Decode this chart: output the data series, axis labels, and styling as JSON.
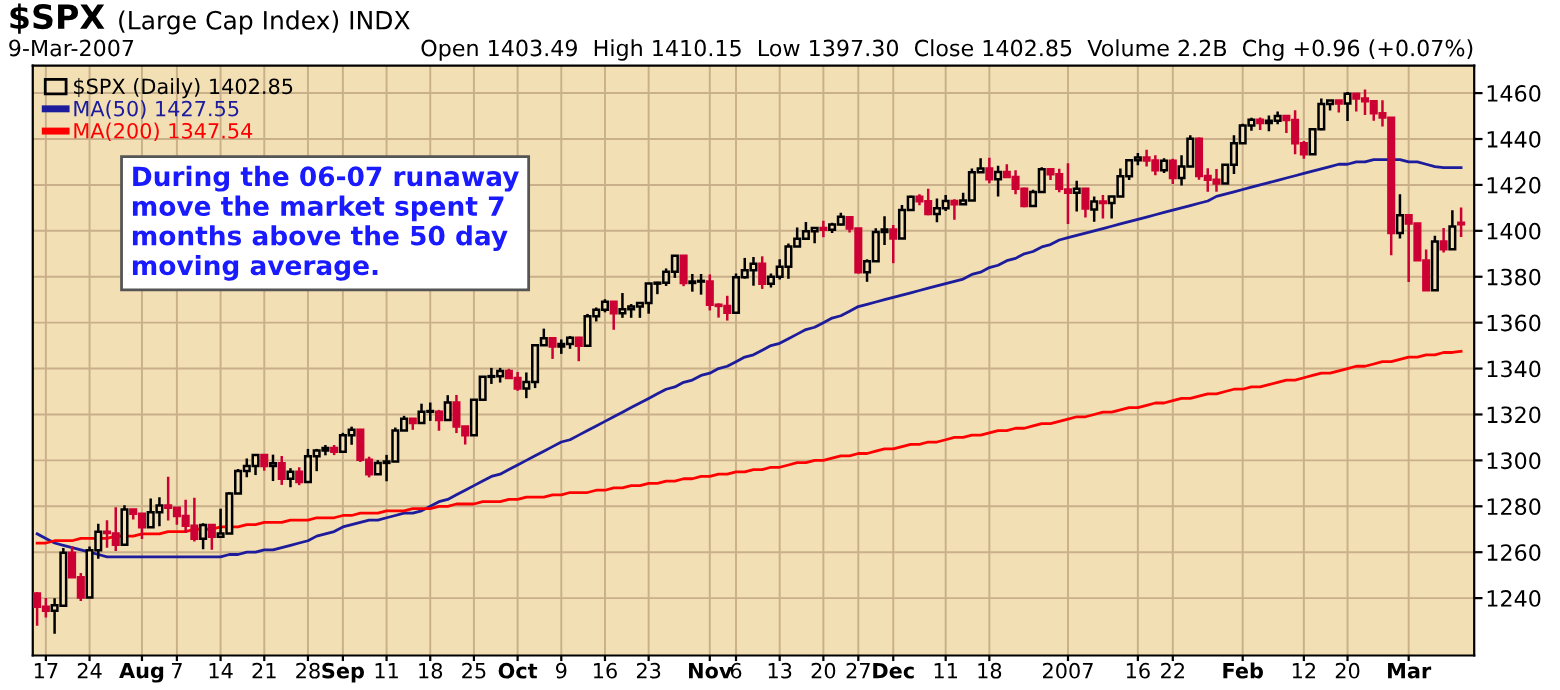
{
  "chart_data": {
    "type": "candlestick",
    "title": "$SPX",
    "subtitle": "(Large Cap Index) INDX",
    "annotations": [
      "9-Mar-2007",
      "Open 1403.49  High 1410.15  Low 1397.30  Close 1402.85  Volume 2.2B  Chg +0.96 (+0.07%)",
      "During the 06-07 runaway\nmove the market spent 7\nmonths above the 50 day\nmoving average."
    ],
    "categories": [
      null,
      "17",
      null,
      null,
      null,
      null,
      "24",
      null,
      null,
      null,
      null,
      null,
      "Aug",
      null,
      null,
      null,
      "7",
      null,
      null,
      null,
      null,
      "14",
      null,
      null,
      null,
      null,
      "21",
      null,
      null,
      null,
      null,
      "28",
      null,
      null,
      null,
      "Sep",
      null,
      null,
      null,
      null,
      "11",
      null,
      null,
      null,
      null,
      "18",
      null,
      null,
      null,
      null,
      "25",
      null,
      null,
      null,
      null,
      "Oct",
      null,
      null,
      null,
      null,
      "9",
      null,
      null,
      null,
      null,
      "16",
      null,
      null,
      null,
      null,
      "23",
      null,
      null,
      null,
      null,
      null,
      null,
      "Nov",
      null,
      null,
      "6",
      null,
      null,
      null,
      null,
      "13",
      null,
      null,
      null,
      null,
      "20",
      null,
      null,
      null,
      "27",
      null,
      null,
      null,
      "Dec",
      null,
      null,
      null,
      null,
      null,
      "11",
      null,
      null,
      null,
      null,
      "18",
      null,
      null,
      null,
      null,
      null,
      null,
      null,
      null,
      "2007",
      null,
      null,
      null,
      null,
      null,
      null,
      null,
      "16",
      null,
      null,
      null,
      "22",
      null,
      null,
      null,
      null,
      null,
      null,
      null,
      "Feb",
      null,
      null,
      null,
      null,
      null,
      null,
      "12",
      null,
      null,
      null,
      null,
      "20",
      null,
      null,
      null,
      null,
      null,
      null,
      "Mar",
      null,
      null,
      null,
      null,
      null,
      null
    ],
    "ylim": [
      1215,
      1472
    ],
    "yticks": [
      1240,
      1260,
      1280,
      1300,
      1320,
      1340,
      1360,
      1380,
      1400,
      1420,
      1440,
      1460
    ],
    "grid": true,
    "legend": "top left",
    "series": [
      {
        "name": "$SPX (Daily) 1402.85",
        "color": "#000000",
        "colors": [
          "#cc0033",
          "#cc0033",
          "#000000",
          "#000000",
          "#cc0033",
          "#cc0033",
          "#000000",
          "#000000",
          "#cc0033",
          "#cc0033",
          "#000000",
          "#cc0033",
          "#cc0033",
          "#000000",
          "#000000",
          "#cc0033",
          "#cc0033",
          "#cc0033",
          "#cc0033",
          "#000000",
          "#cc0033",
          "#000000",
          "#000000",
          "#000000",
          "#000000",
          "#000000",
          "#cc0033",
          "#000000",
          "#cc0033",
          "#000000",
          "#cc0033",
          "#000000",
          "#000000",
          "#000000",
          "#cc0033",
          "#000000",
          "#000000",
          "#cc0033",
          "#cc0033",
          "#000000",
          "#000000",
          "#000000",
          "#000000",
          "#cc0033",
          "#000000",
          "#000000",
          "#cc0033",
          "#000000",
          "#cc0033",
          "#cc0033",
          "#000000",
          "#000000",
          "#000000",
          "#000000",
          "#cc0033",
          "#cc0033",
          "#000000",
          "#000000",
          "#000000",
          "#cc0033",
          "#000000",
          "#000000",
          "#cc0033",
          "#000000",
          "#000000",
          "#000000",
          "#cc0033",
          "#000000",
          "#000000",
          "#000000",
          "#000000",
          "#000000",
          "#000000",
          "#000000",
          "#cc0033",
          "#000000",
          "#000000",
          "#cc0033",
          "#cc0033",
          "#cc0033",
          "#000000",
          "#000000",
          "#000000",
          "#cc0033",
          "#000000",
          "#000000",
          "#000000",
          "#000000",
          "#000000",
          "#000000",
          "#cc0033",
          "#000000",
          "#000000",
          "#cc0033",
          "#cc0033",
          "#000000",
          "#000000",
          "#000000",
          "#cc0033",
          "#000000",
          "#000000",
          "#cc0033",
          "#cc0033",
          "#000000",
          "#000000",
          "#cc0033",
          "#000000",
          "#000000",
          "#000000",
          "#cc0033",
          "#000000",
          "#cc0033",
          "#cc0033",
          "#cc0033",
          "#000000",
          "#000000",
          "#cc0033",
          "#cc0033",
          "#cc0033",
          "#000000",
          "#cc0033",
          "#000000",
          "#cc0033",
          "#000000",
          "#000000",
          "#000000",
          "#000000",
          "#cc0033",
          "#cc0033",
          "#000000",
          "#cc0033",
          "#000000",
          "#000000",
          "#cc0033",
          "#cc0033",
          "#cc0033",
          "#000000",
          "#000000",
          "#000000",
          "#000000",
          "#cc0033",
          "#000000",
          "#000000",
          "#cc0033",
          "#cc0033",
          "#cc0033",
          "#000000",
          "#000000",
          "#000000",
          "#cc0033",
          "#000000",
          "#cc0033",
          "#cc0033",
          "#cc0033",
          "#cc0033",
          "#cc0033",
          "#000000",
          "#cc0033",
          "#cc0033",
          "#cc0033",
          "#000000",
          "#cc0033",
          "#000000",
          "#cc0033"
        ],
        "ohlc": [
          [
            1242,
            1242.5,
            1228,
            1236.2
          ],
          [
            1236.2,
            1240.1,
            1231.5,
            1234.5
          ],
          [
            1234.5,
            1239.9,
            1224.5,
            1236.9
          ],
          [
            1236.7,
            1261.8,
            1236.7,
            1259.8
          ],
          [
            1259.8,
            1262.6,
            1249.1,
            1249.1
          ],
          [
            1249.1,
            1250.9,
            1238.7,
            1240.3
          ],
          [
            1240.3,
            1262.5,
            1240.3,
            1260.9
          ],
          [
            1260.9,
            1272.4,
            1257.2,
            1268.9
          ],
          [
            1268.9,
            1273.9,
            1261.9,
            1268.4
          ],
          [
            1268.2,
            1279.6,
            1260.5,
            1263.2
          ],
          [
            1263.2,
            1280.4,
            1263.2,
            1278.6
          ],
          [
            1278.6,
            1278.7,
            1274.3,
            1276.7
          ],
          [
            1276.7,
            1276.7,
            1265.7,
            1270.9
          ],
          [
            1270.9,
            1283.4,
            1270.9,
            1277.4
          ],
          [
            1277.4,
            1283.9,
            1271.3,
            1280.3
          ],
          [
            1280.3,
            1292.9,
            1273.8,
            1279.4
          ],
          [
            1279.4,
            1279.4,
            1272.0,
            1275.8
          ],
          [
            1275.8,
            1282.8,
            1268.4,
            1271.5
          ],
          [
            1271.5,
            1283.7,
            1264.7,
            1265.9
          ],
          [
            1265.9,
            1272.6,
            1261.3,
            1271.8
          ],
          [
            1271.8,
            1271.8,
            1261.1,
            1266.7
          ],
          [
            1266.7,
            1278.9,
            1266.7,
            1268.2
          ],
          [
            1268.2,
            1286.2,
            1268.2,
            1285.6
          ],
          [
            1285.6,
            1296.2,
            1285.6,
            1295.4
          ],
          [
            1295.4,
            1300.8,
            1292.7,
            1297.5
          ],
          [
            1297.5,
            1302.3,
            1293.6,
            1302.3
          ],
          [
            1302.3,
            1302.3,
            1295.5,
            1297.5
          ],
          [
            1297.5,
            1302.5,
            1291.0,
            1298.8
          ],
          [
            1298.8,
            1301.9,
            1289.3,
            1292.0
          ],
          [
            1292.0,
            1296.6,
            1288.3,
            1295.0
          ],
          [
            1295.0,
            1297.0,
            1289.2,
            1290.6
          ],
          [
            1290.6,
            1305.0,
            1290.6,
            1301.8
          ],
          [
            1301.8,
            1305.0,
            1295.3,
            1304.3
          ],
          [
            1304.3,
            1306.7,
            1302.2,
            1305.4
          ],
          [
            1305.4,
            1306.7,
            1302.3,
            1303.8
          ],
          [
            1303.8,
            1312.0,
            1303.8,
            1311.0
          ],
          [
            1311.0,
            1314.7,
            1306.8,
            1313.3
          ],
          [
            1313.3,
            1313.3,
            1299.3,
            1300.3
          ],
          [
            1300.3,
            1301.6,
            1292.6,
            1294.0
          ],
          [
            1294.0,
            1300.1,
            1294.0,
            1298.9
          ],
          [
            1298.9,
            1302.4,
            1290.9,
            1299.5
          ],
          [
            1299.5,
            1314.3,
            1299.5,
            1313.0
          ],
          [
            1313.0,
            1319.4,
            1313.0,
            1318.1
          ],
          [
            1318.1,
            1318.1,
            1313.3,
            1316.3
          ],
          [
            1316.3,
            1324.7,
            1316.3,
            1321.2
          ],
          [
            1321.2,
            1325.2,
            1317.2,
            1321.2
          ],
          [
            1321.2,
            1322.0,
            1312.9,
            1317.6
          ],
          [
            1317.6,
            1328.4,
            1317.6,
            1325.2
          ],
          [
            1325.2,
            1328.5,
            1311.9,
            1314.8
          ],
          [
            1314.8,
            1315.0,
            1306.9,
            1311.0
          ],
          [
            1311.0,
            1326.6,
            1311.0,
            1326.4
          ],
          [
            1326.4,
            1336.6,
            1326.4,
            1336.4
          ],
          [
            1336.4,
            1340.3,
            1333.3,
            1336.6
          ],
          [
            1336.6,
            1340.3,
            1333.9,
            1338.9
          ],
          [
            1338.9,
            1339.9,
            1335.6,
            1335.9
          ],
          [
            1335.9,
            1338.5,
            1330.3,
            1331.3
          ],
          [
            1331.3,
            1338.3,
            1327.1,
            1334.1
          ],
          [
            1334.1,
            1350.2,
            1331.5,
            1350.2
          ],
          [
            1350.2,
            1357.4,
            1350.2,
            1353.2
          ],
          [
            1353.2,
            1353.2,
            1344.2,
            1349.6
          ],
          [
            1349.6,
            1352.7,
            1346.4,
            1350.7
          ],
          [
            1350.7,
            1354.2,
            1348.6,
            1353.4
          ],
          [
            1353.4,
            1353.8,
            1343.2,
            1349.9
          ],
          [
            1349.9,
            1363.8,
            1349.9,
            1362.8
          ],
          [
            1362.8,
            1366.6,
            1360.5,
            1365.6
          ],
          [
            1365.6,
            1370.2,
            1364.5,
            1369.1
          ],
          [
            1369.1,
            1369.1,
            1356.9,
            1364.1
          ],
          [
            1364.1,
            1372.9,
            1362.1,
            1365.8
          ],
          [
            1365.8,
            1368.1,
            1362.1,
            1367.0
          ],
          [
            1367.0,
            1368.7,
            1362.1,
            1368.6
          ],
          [
            1368.6,
            1377.4,
            1363.9,
            1377.0
          ],
          [
            1377.0,
            1377.8,
            1372.4,
            1377.4
          ],
          [
            1377.4,
            1383.6,
            1376.0,
            1382.2
          ],
          [
            1382.2,
            1389.5,
            1379.5,
            1389.1
          ],
          [
            1389.1,
            1389.1,
            1375.9,
            1377.3
          ],
          [
            1377.3,
            1381.2,
            1373.5,
            1377.9
          ],
          [
            1377.9,
            1381.2,
            1372.2,
            1377.9
          ],
          [
            1377.9,
            1381.0,
            1365.3,
            1367.8
          ],
          [
            1367.8,
            1368.4,
            1362.2,
            1367.3
          ],
          [
            1367.3,
            1371.7,
            1360.9,
            1364.3
          ],
          [
            1364.3,
            1381.4,
            1364.3,
            1379.8
          ],
          [
            1379.8,
            1388.2,
            1379.2,
            1382.8
          ],
          [
            1382.8,
            1388.6,
            1376.1,
            1385.7
          ],
          [
            1385.7,
            1388.9,
            1374.7,
            1376.9
          ],
          [
            1376.9,
            1381.4,
            1375.3,
            1380.0
          ],
          [
            1380.0,
            1387.6,
            1378.8,
            1384.4
          ],
          [
            1384.4,
            1394.5,
            1379.1,
            1393.2
          ],
          [
            1393.2,
            1401.4,
            1393.1,
            1396.6
          ],
          [
            1396.6,
            1403.8,
            1396.6,
            1399.8
          ],
          [
            1399.8,
            1401.2,
            1394.6,
            1401.2
          ],
          [
            1401.2,
            1404.4,
            1397.2,
            1400.5
          ],
          [
            1400.5,
            1403.5,
            1399.0,
            1402.8
          ],
          [
            1402.8,
            1407.9,
            1402.3,
            1406.1
          ],
          [
            1405.9,
            1405.9,
            1399.3,
            1401.0
          ],
          [
            1401.0,
            1401.0,
            1381.4,
            1382.0
          ],
          [
            1382.0,
            1387.6,
            1377.8,
            1386.7
          ],
          [
            1386.7,
            1401.1,
            1386.7,
            1399.5
          ],
          [
            1399.5,
            1406.3,
            1393.8,
            1400.6
          ],
          [
            1400.6,
            1402.5,
            1385.9,
            1396.7
          ],
          [
            1396.7,
            1411.2,
            1396.7,
            1409.1
          ],
          [
            1409.1,
            1415.3,
            1408.8,
            1414.8
          ],
          [
            1414.8,
            1415.9,
            1411.1,
            1412.9
          ],
          [
            1412.9,
            1418.3,
            1406.8,
            1407.3
          ],
          [
            1407.3,
            1414.1,
            1403.7,
            1409.8
          ],
          [
            1409.8,
            1415.6,
            1408.6,
            1413.0
          ],
          [
            1413.0,
            1413.8,
            1404.8,
            1411.6
          ],
          [
            1411.6,
            1416.6,
            1411.6,
            1413.2
          ],
          [
            1413.2,
            1427.2,
            1413.2,
            1425.5
          ],
          [
            1425.5,
            1431.6,
            1425.5,
            1427.1
          ],
          [
            1427.1,
            1431.8,
            1420.7,
            1422.5
          ],
          [
            1422.5,
            1428.3,
            1414.9,
            1425.6
          ],
          [
            1425.6,
            1429.0,
            1423.3,
            1423.5
          ],
          [
            1423.5,
            1426.4,
            1415.9,
            1418.3
          ],
          [
            1418.3,
            1418.8,
            1410.3,
            1410.8
          ],
          [
            1410.8,
            1417.9,
            1410.5,
            1416.9
          ],
          [
            1416.9,
            1427.7,
            1416.6,
            1426.8
          ],
          [
            1426.8,
            1427.3,
            1422.1,
            1424.7
          ],
          [
            1424.7,
            1427.0,
            1416.8,
            1418.3
          ],
          [
            1418.0,
            1429.4,
            1403.0,
            1416.6
          ],
          [
            1416.6,
            1421.8,
            1408.4,
            1418.3
          ],
          [
            1418.3,
            1418.3,
            1405.8,
            1409.7
          ],
          [
            1409.3,
            1415.0,
            1404.0,
            1412.8
          ],
          [
            1412.8,
            1415.6,
            1405.4,
            1412.1
          ],
          [
            1412.1,
            1415.0,
            1405.4,
            1414.9
          ],
          [
            1414.9,
            1427.1,
            1414.9,
            1423.8
          ],
          [
            1423.8,
            1431.2,
            1422.1,
            1430.7
          ],
          [
            1430.7,
            1433.9,
            1428.6,
            1431.9
          ],
          [
            1431.9,
            1435.3,
            1428.0,
            1430.6
          ],
          [
            1430.6,
            1432.9,
            1424.2,
            1426.4
          ],
          [
            1426.4,
            1431.6,
            1425.2,
            1430.5
          ],
          [
            1430.5,
            1431.4,
            1420.4,
            1423.0
          ],
          [
            1423.0,
            1432.9,
            1419.8,
            1428.0
          ],
          [
            1428.0,
            1441.6,
            1428.0,
            1440.1
          ],
          [
            1440.1,
            1440.7,
            1422.3,
            1423.9
          ],
          [
            1423.9,
            1427.3,
            1417.0,
            1422.2
          ],
          [
            1422.2,
            1426.9,
            1417.0,
            1420.6
          ],
          [
            1420.6,
            1428.8,
            1420.6,
            1428.8
          ],
          [
            1428.8,
            1441.6,
            1424.8,
            1438.2
          ],
          [
            1438.2,
            1446.6,
            1437.9,
            1445.9
          ],
          [
            1445.9,
            1449.3,
            1443.6,
            1448.4
          ],
          [
            1448.4,
            1449.4,
            1443.9,
            1447.0
          ],
          [
            1447.0,
            1450.2,
            1443.4,
            1448.0
          ],
          [
            1448.0,
            1452.0,
            1446.4,
            1450.0
          ],
          [
            1450.0,
            1450.4,
            1442.6,
            1448.3
          ],
          [
            1448.3,
            1452.5,
            1433.4,
            1438.1
          ],
          [
            1438.1,
            1439.1,
            1431.4,
            1433.4
          ],
          [
            1433.4,
            1444.4,
            1433.2,
            1444.3
          ],
          [
            1444.3,
            1457.6,
            1443.8,
            1455.3
          ],
          [
            1455.3,
            1457.0,
            1452.4,
            1456.8
          ],
          [
            1456.8,
            1456.8,
            1451.6,
            1455.5
          ],
          [
            1455.5,
            1460.5,
            1447.8,
            1459.7
          ],
          [
            1459.7,
            1459.7,
            1452.0,
            1457.6
          ],
          [
            1457.6,
            1461.6,
            1450.5,
            1456.4
          ],
          [
            1456.4,
            1456.4,
            1448.0,
            1451.2
          ],
          [
            1451.2,
            1456.9,
            1445.5,
            1449.4
          ],
          [
            1449.3,
            1449.3,
            1389.4,
            1399.0
          ],
          [
            1399.0,
            1415.9,
            1396.7,
            1406.8
          ],
          [
            1406.8,
            1406.8,
            1377.7,
            1403.2
          ],
          [
            1403.2,
            1403.4,
            1386.9,
            1387.2
          ],
          [
            1387.1,
            1391.9,
            1374.0,
            1374.1
          ],
          [
            1374.1,
            1397.9,
            1374.1,
            1395.4
          ],
          [
            1395.4,
            1401.2,
            1390.6,
            1392.0
          ],
          [
            1392.0,
            1409.0,
            1392.0,
            1401.9
          ],
          [
            1403.49,
            1410.15,
            1397.3,
            1402.85
          ]
        ]
      },
      {
        "name": "MA(50) 1427.55",
        "type": "line",
        "color": "#1c1c9c",
        "values": [
          1268,
          1266,
          1264,
          1263,
          1262,
          1261,
          1260,
          1259,
          1258,
          1258,
          1258,
          1258,
          1258,
          1258,
          1258,
          1258,
          1258,
          1258,
          1258,
          1258,
          1258,
          1258,
          1259,
          1259,
          1260,
          1260,
          1261,
          1261,
          1262,
          1263,
          1264,
          1265,
          1267,
          1268,
          1269,
          1271,
          1272,
          1273,
          1274,
          1274,
          1275,
          1276,
          1277,
          1277,
          1278,
          1280,
          1282,
          1283,
          1285,
          1287,
          1289,
          1291,
          1293,
          1294,
          1296,
          1298,
          1300,
          1302,
          1304,
          1306,
          1308,
          1309,
          1311,
          1313,
          1315,
          1317,
          1319,
          1321,
          1323,
          1325,
          1327,
          1329,
          1331,
          1332,
          1334,
          1335,
          1337,
          1338,
          1340,
          1341,
          1343,
          1345,
          1346,
          1348,
          1350,
          1351,
          1353,
          1355,
          1357,
          1358,
          1360,
          1362,
          1363,
          1365,
          1367,
          1368,
          1369,
          1370,
          1371,
          1372,
          1373,
          1374,
          1375,
          1376,
          1377,
          1378,
          1379,
          1381,
          1382,
          1384,
          1385,
          1387,
          1388,
          1390,
          1391,
          1393,
          1394,
          1396,
          1397,
          1398,
          1399,
          1400,
          1401,
          1402,
          1403,
          1404,
          1405,
          1406,
          1407,
          1408,
          1409,
          1410,
          1411,
          1412,
          1413,
          1415,
          1416,
          1417,
          1418,
          1419,
          1420,
          1421,
          1422,
          1423,
          1424,
          1425,
          1426,
          1427,
          1428,
          1429,
          1429,
          1430,
          1430,
          1431,
          1431,
          1431,
          1431,
          1430,
          1430,
          1429,
          1428,
          1427.5,
          1427.5,
          1427.55
        ]
      },
      {
        "name": "MA(200) 1347.54",
        "type": "line",
        "color": "#ff0000",
        "values": [
          1264,
          1264,
          1265,
          1265,
          1265,
          1266,
          1266,
          1266,
          1266,
          1267,
          1267,
          1267,
          1268,
          1268,
          1268,
          1269,
          1269,
          1269,
          1270,
          1270,
          1270,
          1271,
          1271,
          1271,
          1272,
          1272,
          1273,
          1273,
          1273,
          1274,
          1274,
          1274,
          1275,
          1275,
          1275,
          1276,
          1276,
          1277,
          1277,
          1277,
          1278,
          1278,
          1278,
          1279,
          1279,
          1279,
          1280,
          1280,
          1281,
          1281,
          1281,
          1282,
          1282,
          1282,
          1283,
          1283,
          1284,
          1284,
          1284,
          1285,
          1285,
          1286,
          1286,
          1286,
          1287,
          1287,
          1288,
          1288,
          1289,
          1289,
          1290,
          1290,
          1291,
          1291,
          1292,
          1292,
          1293,
          1293,
          1294,
          1294,
          1295,
          1295,
          1296,
          1296,
          1297,
          1297,
          1298,
          1299,
          1299,
          1300,
          1300,
          1301,
          1302,
          1302,
          1303,
          1303,
          1304,
          1305,
          1305,
          1306,
          1307,
          1307,
          1308,
          1308,
          1309,
          1310,
          1310,
          1311,
          1311,
          1312,
          1313,
          1313,
          1314,
          1314,
          1315,
          1316,
          1316,
          1317,
          1318,
          1319,
          1319,
          1320,
          1321,
          1321,
          1322,
          1323,
          1323,
          1324,
          1325,
          1325,
          1326,
          1327,
          1327,
          1328,
          1329,
          1329,
          1330,
          1331,
          1331,
          1332,
          1332,
          1333,
          1334,
          1335,
          1335,
          1336,
          1337,
          1338,
          1338,
          1339,
          1340,
          1341,
          1341,
          1342,
          1343,
          1343,
          1344,
          1345,
          1345,
          1346,
          1346,
          1347,
          1347,
          1347.54
        ]
      }
    ]
  }
}
